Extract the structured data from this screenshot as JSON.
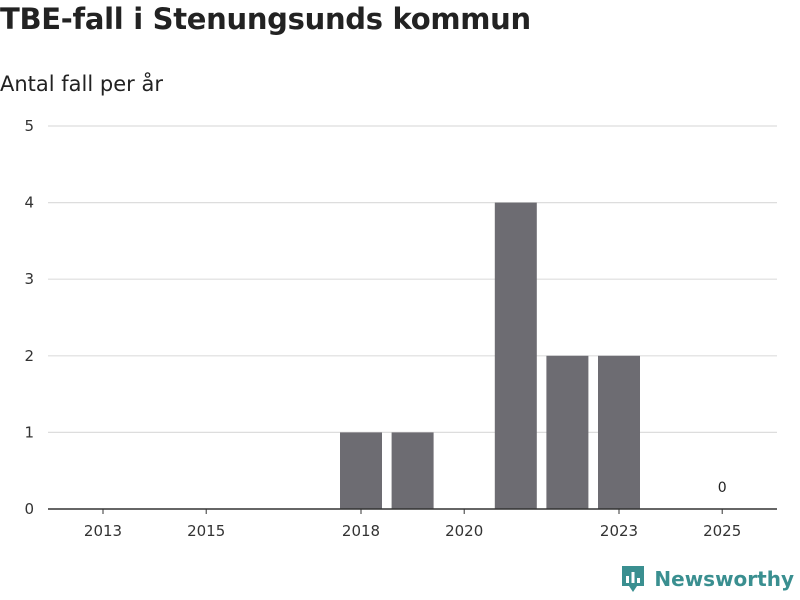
{
  "title": "TBE-fall i Stenungsunds kommun",
  "subtitle": "Antal fall per år",
  "brand": {
    "name": "Newsworthy",
    "icon": "newsworthy-logo-icon",
    "color": "#3a8f90"
  },
  "colors": {
    "bar": "#6d6c72",
    "grid": "#dddddd",
    "axis": "#333333"
  },
  "chart_data": {
    "type": "bar",
    "categories": [
      "2013",
      "2014",
      "2015",
      "2016",
      "2017",
      "2018",
      "2019",
      "2020",
      "2021",
      "2022",
      "2023",
      "2024",
      "2025"
    ],
    "values": [
      0,
      0,
      0,
      0,
      0,
      1,
      1,
      0,
      4,
      2,
      2,
      0,
      0
    ],
    "x_tick_labels": [
      "2013",
      "2015",
      "2018",
      "2020",
      "2023",
      "2025"
    ],
    "y_ticks": [
      "0",
      "1",
      "2",
      "3",
      "4",
      "5"
    ],
    "ylim": [
      0,
      5
    ],
    "grid": true,
    "annotations": [
      {
        "category": "2025",
        "text": "0"
      }
    ]
  }
}
